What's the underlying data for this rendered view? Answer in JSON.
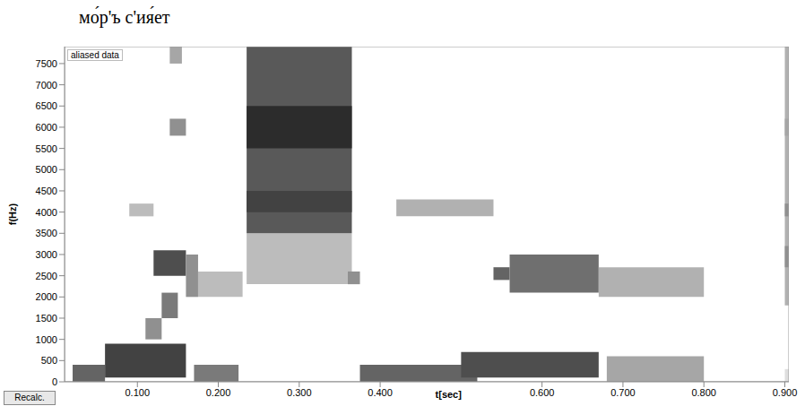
{
  "chart_data": {
    "type": "spectrogram",
    "title": "мо́р'ъ с'ия́ет",
    "annotations": [
      "aliased data",
      "Recalc."
    ],
    "x_label": "t[sec]",
    "y_label": "f(Hz)",
    "xlim": [
      0.01,
      0.905
    ],
    "ylim": [
      0,
      7900
    ],
    "xticks": [
      {
        "value": 0.1,
        "label": "0.100"
      },
      {
        "value": 0.2,
        "label": "0.200"
      },
      {
        "value": 0.3,
        "label": "0.300"
      },
      {
        "value": 0.4,
        "label": "0.400"
      },
      {
        "value": 0.6,
        "label": "0.600"
      },
      {
        "value": 0.7,
        "label": "0.700"
      },
      {
        "value": 0.8,
        "label": "0.800"
      },
      {
        "value": 0.9,
        "label": "0.900"
      }
    ],
    "yticks": [
      0,
      500,
      1000,
      1500,
      2000,
      2500,
      3000,
      3500,
      4000,
      4500,
      5000,
      5500,
      6000,
      6500,
      7000,
      7500
    ],
    "color": "#000000",
    "cells": [
      {
        "t": [
          0.02,
          0.06
        ],
        "f": [
          0,
          400
        ],
        "value": 0.7
      },
      {
        "t": [
          0.06,
          0.16
        ],
        "f": [
          100,
          900
        ],
        "value": 0.85
      },
      {
        "t": [
          0.11,
          0.13
        ],
        "f": [
          1000,
          1500
        ],
        "value": 0.5
      },
      {
        "t": [
          0.13,
          0.15
        ],
        "f": [
          1500,
          2100
        ],
        "value": 0.6
      },
      {
        "t": [
          0.12,
          0.16
        ],
        "f": [
          2500,
          3100
        ],
        "value": 0.8
      },
      {
        "t": [
          0.14,
          0.16
        ],
        "f": [
          5800,
          6200
        ],
        "value": 0.5
      },
      {
        "t": [
          0.14,
          0.155
        ],
        "f": [
          7500,
          7900
        ],
        "value": 0.4
      },
      {
        "t": [
          0.09,
          0.12
        ],
        "f": [
          3900,
          4200
        ],
        "value": 0.3
      },
      {
        "t": [
          0.16,
          0.175
        ],
        "f": [
          2000,
          3000
        ],
        "value": 0.5
      },
      {
        "t": [
          0.17,
          0.225
        ],
        "f": [
          0,
          400
        ],
        "value": 0.6
      },
      {
        "t": [
          0.175,
          0.23
        ],
        "f": [
          2000,
          2600
        ],
        "value": 0.3
      },
      {
        "t": [
          0.235,
          0.365
        ],
        "f": [
          2300,
          3500
        ],
        "value": 0.3
      },
      {
        "t": [
          0.235,
          0.365
        ],
        "f": [
          3500,
          7900
        ],
        "value": 0.75
      },
      {
        "t": [
          0.235,
          0.365
        ],
        "f": [
          4000,
          4500
        ],
        "value": 0.85
      },
      {
        "t": [
          0.235,
          0.365
        ],
        "f": [
          5500,
          6500
        ],
        "value": 0.95
      },
      {
        "t": [
          0.36,
          0.375
        ],
        "f": [
          2300,
          2600
        ],
        "value": 0.5
      },
      {
        "t": [
          0.375,
          0.52
        ],
        "f": [
          0,
          400
        ],
        "value": 0.7
      },
      {
        "t": [
          0.5,
          0.67
        ],
        "f": [
          100,
          700
        ],
        "value": 0.8
      },
      {
        "t": [
          0.42,
          0.54
        ],
        "f": [
          3900,
          4300
        ],
        "value": 0.35
      },
      {
        "t": [
          0.54,
          0.56
        ],
        "f": [
          2400,
          2700
        ],
        "value": 0.7
      },
      {
        "t": [
          0.56,
          0.67
        ],
        "f": [
          2100,
          3000
        ],
        "value": 0.65
      },
      {
        "t": [
          0.67,
          0.8
        ],
        "f": [
          2000,
          2700
        ],
        "value": 0.35
      },
      {
        "t": [
          0.68,
          0.8
        ],
        "f": [
          0,
          600
        ],
        "value": 0.4
      },
      {
        "t": [
          0.9,
          0.92
        ],
        "f": [
          1800,
          7900
        ],
        "value": 0.35
      },
      {
        "t": [
          0.9,
          0.92
        ],
        "f": [
          2700,
          3200
        ],
        "value": 0.5
      },
      {
        "t": [
          0.9,
          0.92
        ],
        "f": [
          3900,
          4200
        ],
        "value": 0.5
      },
      {
        "t": [
          0.9,
          0.92
        ],
        "f": [
          5800,
          6200
        ],
        "value": 0.4
      },
      {
        "t": [
          0.9,
          0.915
        ],
        "f": [
          0,
          300
        ],
        "value": 0.15
      }
    ]
  }
}
